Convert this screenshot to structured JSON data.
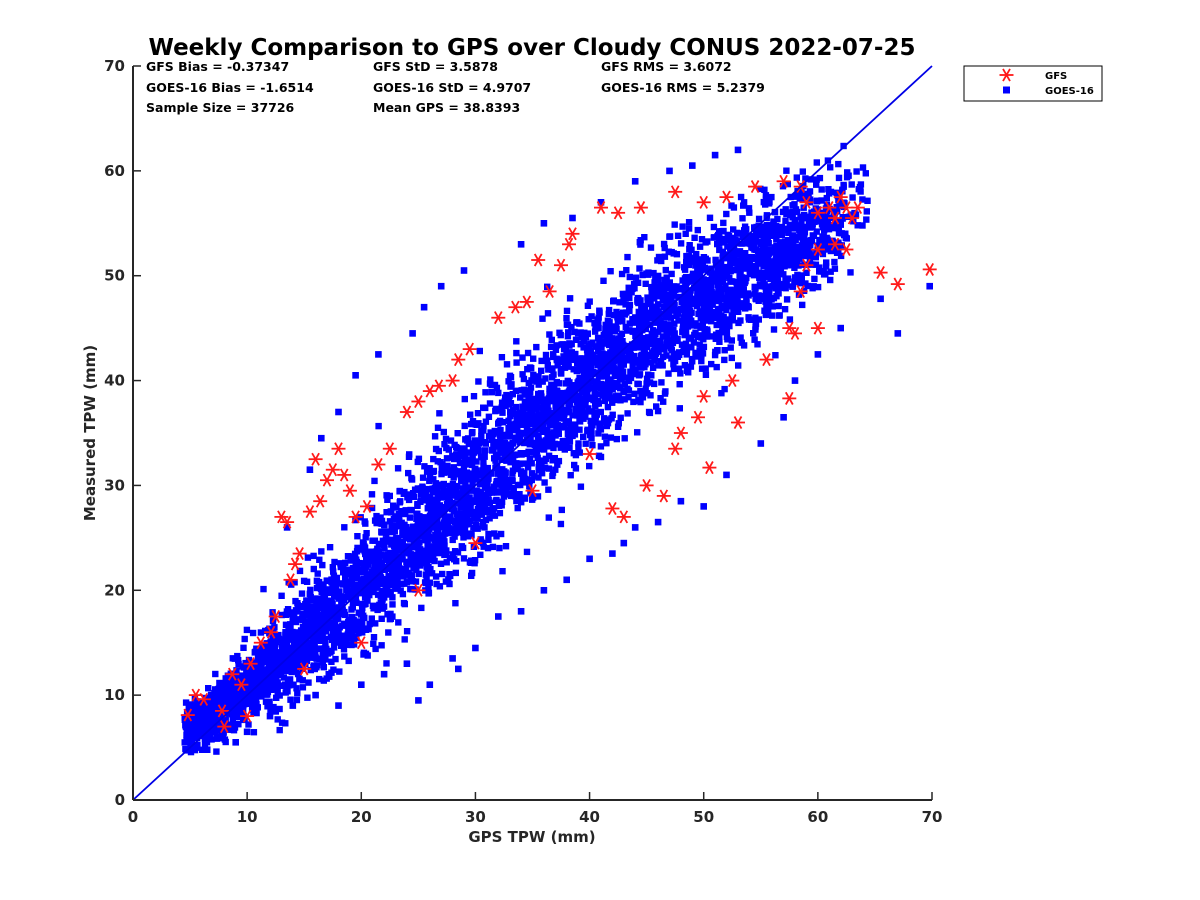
{
  "chart_data": {
    "type": "scatter",
    "title": "Weekly Comparison to GPS over Cloudy CONUS 2022-07-25",
    "xlabel": "GPS TPW (mm)",
    "ylabel": "Measured TPW (mm)",
    "xlim": [
      0,
      70
    ],
    "ylim": [
      0,
      70
    ],
    "xticks": [
      0,
      10,
      20,
      30,
      40,
      50,
      60,
      70
    ],
    "yticks": [
      0,
      10,
      20,
      30,
      40,
      50,
      60,
      70
    ],
    "grid": false,
    "legend_position": "top-right outside",
    "reference_line": {
      "type": "one-to-one",
      "from": [
        0,
        0
      ],
      "to": [
        70,
        70
      ],
      "color": "#0000e6"
    },
    "stats": [
      [
        "GFS Bias = -0.37347",
        "GFS StD = 3.5878",
        "GFS RMS = 3.6072"
      ],
      [
        "GOES-16 Bias = -1.6514",
        "GOES-16 StD = 4.9707",
        "GOES-16 RMS = 5.2379"
      ],
      [
        "Sample Size = 37726",
        "Mean GPS = 38.8393",
        ""
      ]
    ],
    "series": [
      {
        "name": "GFS",
        "marker": "asterisk",
        "color": "#ff1a1a",
        "points": [
          [
            4.8,
            8.1
          ],
          [
            5.5,
            10.0
          ],
          [
            6.2,
            9.6
          ],
          [
            7.8,
            8.5
          ],
          [
            8.7,
            12.0
          ],
          [
            9.5,
            11.0
          ],
          [
            10.3,
            13.0
          ],
          [
            11.2,
            15.0
          ],
          [
            12.1,
            16.0
          ],
          [
            12.5,
            17.5
          ],
          [
            13.0,
            27.0
          ],
          [
            13.5,
            26.5
          ],
          [
            13.8,
            21.0
          ],
          [
            14.2,
            22.5
          ],
          [
            14.6,
            23.5
          ],
          [
            15.5,
            27.5
          ],
          [
            16.0,
            32.5
          ],
          [
            16.4,
            28.5
          ],
          [
            17.0,
            30.5
          ],
          [
            17.5,
            31.5
          ],
          [
            18.0,
            33.5
          ],
          [
            18.5,
            31.0
          ],
          [
            19.0,
            29.5
          ],
          [
            19.5,
            27.0
          ],
          [
            20.5,
            28.0
          ],
          [
            21.5,
            32.0
          ],
          [
            22.5,
            33.5
          ],
          [
            24.0,
            37.0
          ],
          [
            25.0,
            38.0
          ],
          [
            26.0,
            39.0
          ],
          [
            26.8,
            39.5
          ],
          [
            28.0,
            40.0
          ],
          [
            28.5,
            42.0
          ],
          [
            29.5,
            43.0
          ],
          [
            32.0,
            46.0
          ],
          [
            33.5,
            47.0
          ],
          [
            34.5,
            47.5
          ],
          [
            35.5,
            51.5
          ],
          [
            36.5,
            48.5
          ],
          [
            37.5,
            51.0
          ],
          [
            38.2,
            53.0
          ],
          [
            38.5,
            54.0
          ],
          [
            41.0,
            56.5
          ],
          [
            42.5,
            56.0
          ],
          [
            44.5,
            56.5
          ],
          [
            47.5,
            58.0
          ],
          [
            50.0,
            57.0
          ],
          [
            52.0,
            57.5
          ],
          [
            54.5,
            58.5
          ],
          [
            57.0,
            59.0
          ],
          [
            58.5,
            58.5
          ],
          [
            59.0,
            57.0
          ],
          [
            60.0,
            56.0
          ],
          [
            61.0,
            56.5
          ],
          [
            61.5,
            55.5
          ],
          [
            62.0,
            57.5
          ],
          [
            62.5,
            56.5
          ],
          [
            63.0,
            55.5
          ],
          [
            63.5,
            56.5
          ],
          [
            61.5,
            53.0
          ],
          [
            62.5,
            52.5
          ],
          [
            60.0,
            52.5
          ],
          [
            59.0,
            51.0
          ],
          [
            58.5,
            48.5
          ],
          [
            57.5,
            45.0
          ],
          [
            58.0,
            44.5
          ],
          [
            60.0,
            45.0
          ],
          [
            65.5,
            50.3
          ],
          [
            67.0,
            49.2
          ],
          [
            69.8,
            50.6
          ],
          [
            57.5,
            38.3
          ],
          [
            50.5,
            31.7
          ],
          [
            49.5,
            36.5
          ],
          [
            48.0,
            35.0
          ],
          [
            46.5,
            29.0
          ],
          [
            45.0,
            30.0
          ],
          [
            43.0,
            27.0
          ],
          [
            42.0,
            27.8
          ],
          [
            47.5,
            33.5
          ],
          [
            52.5,
            40.0
          ],
          [
            55.5,
            42.0
          ],
          [
            53.0,
            36.0
          ],
          [
            50.0,
            38.5
          ],
          [
            40.0,
            33.0
          ],
          [
            35.0,
            29.5
          ],
          [
            30.0,
            24.5
          ],
          [
            25.0,
            20.0
          ],
          [
            20.0,
            15.0
          ],
          [
            15.0,
            12.5
          ],
          [
            10.0,
            8.0
          ],
          [
            8.0,
            7.0
          ]
        ]
      },
      {
        "name": "GOES-16",
        "marker": "square",
        "color": "#0000ff",
        "points": [
          [
            5.5,
            5.0
          ],
          [
            6.5,
            4.8
          ],
          [
            7.5,
            6.0
          ],
          [
            9.0,
            5.5
          ],
          [
            10.0,
            6.5
          ],
          [
            12.0,
            8.0
          ],
          [
            14.0,
            9.0
          ],
          [
            16.0,
            10.0
          ],
          [
            18.0,
            9.0
          ],
          [
            20.0,
            11.0
          ],
          [
            22.0,
            12.0
          ],
          [
            24.0,
            13.0
          ],
          [
            25.0,
            9.5
          ],
          [
            26.0,
            11.0
          ],
          [
            28.0,
            13.5
          ],
          [
            28.5,
            12.5
          ],
          [
            30.0,
            14.5
          ],
          [
            32.0,
            17.5
          ],
          [
            34.0,
            18.0
          ],
          [
            36.0,
            20.0
          ],
          [
            38.0,
            21.0
          ],
          [
            40.0,
            23.0
          ],
          [
            42.0,
            23.5
          ],
          [
            43.0,
            24.5
          ],
          [
            44.0,
            26.0
          ],
          [
            46.0,
            26.5
          ],
          [
            48.0,
            28.5
          ],
          [
            50.0,
            28.0
          ],
          [
            52.0,
            31.0
          ],
          [
            55.0,
            34.0
          ],
          [
            57.0,
            36.5
          ],
          [
            58.0,
            40.0
          ],
          [
            60.0,
            42.5
          ],
          [
            62.0,
            45.0
          ],
          [
            65.5,
            47.8
          ],
          [
            67.0,
            44.5
          ],
          [
            69.8,
            49.0
          ],
          [
            53.0,
            62.0
          ],
          [
            51.0,
            61.5
          ],
          [
            49.0,
            60.5
          ],
          [
            47.0,
            60.0
          ],
          [
            44.0,
            59.0
          ],
          [
            41.0,
            57.0
          ],
          [
            38.5,
            55.5
          ],
          [
            36.0,
            55.0
          ],
          [
            34.0,
            53.0
          ],
          [
            29.0,
            50.5
          ],
          [
            27.0,
            49.0
          ],
          [
            25.5,
            47.0
          ],
          [
            24.5,
            44.5
          ],
          [
            21.5,
            42.5
          ],
          [
            19.5,
            40.5
          ],
          [
            18.0,
            37.0
          ],
          [
            16.5,
            34.5
          ],
          [
            15.5,
            31.5
          ],
          [
            13.5,
            26.0
          ]
        ],
        "density_cloud": [
          [
            5.5,
            7.5,
            1.5,
            1.8
          ],
          [
            8.0,
            8.5,
            2.0,
            2.3
          ],
          [
            11.0,
            11.5,
            2.4,
            3.0
          ],
          [
            14.0,
            14.5,
            2.8,
            4.0
          ],
          [
            17.0,
            17.5,
            3.2,
            4.5
          ],
          [
            20.0,
            20.0,
            3.5,
            5.0
          ],
          [
            23.0,
            23.0,
            3.8,
            5.5
          ],
          [
            26.0,
            26.0,
            4.0,
            6.0
          ],
          [
            29.0,
            29.5,
            4.2,
            6.2
          ],
          [
            32.0,
            32.5,
            4.4,
            6.5
          ],
          [
            35.0,
            35.5,
            4.5,
            6.5
          ],
          [
            38.0,
            38.5,
            4.6,
            6.5
          ],
          [
            41.0,
            41.0,
            4.7,
            6.3
          ],
          [
            44.0,
            44.0,
            4.8,
            6.0
          ],
          [
            47.0,
            46.0,
            5.0,
            5.8
          ],
          [
            50.0,
            48.0,
            5.0,
            5.8
          ],
          [
            53.0,
            50.0,
            4.8,
            5.5
          ],
          [
            56.0,
            51.5,
            4.2,
            5.0
          ],
          [
            59.0,
            52.5,
            3.0,
            4.0
          ]
        ]
      }
    ]
  }
}
